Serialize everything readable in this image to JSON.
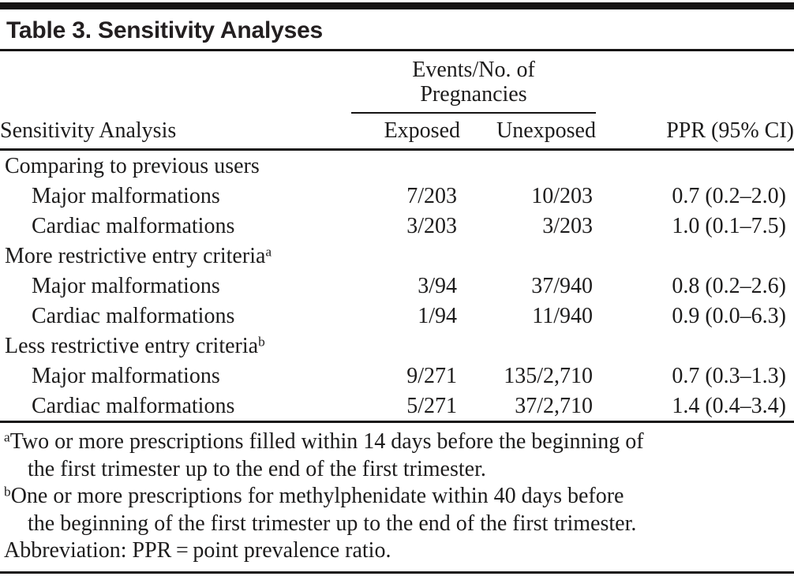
{
  "table": {
    "title": "Table 3. Sensitivity Analyses",
    "spanner_line1": "Events/No. of",
    "spanner_line2": "Pregnancies",
    "columns": {
      "stub": "Sensitivity Analysis",
      "exposed": "Exposed",
      "unexposed": "Unexposed",
      "ppr": "PPR (95% CI)"
    },
    "groups": [
      {
        "label": "Comparing to previous users",
        "superscript": "",
        "rows": [
          {
            "label": "Major malformations",
            "exposed": "7/203",
            "unexposed": "10/203",
            "ppr": "0.7 (0.2–2.0)"
          },
          {
            "label": "Cardiac malformations",
            "exposed": "3/203",
            "unexposed": "3/203",
            "ppr": "1.0 (0.1–7.5)"
          }
        ]
      },
      {
        "label": "More restrictive entry criteria",
        "superscript": "a",
        "rows": [
          {
            "label": "Major malformations",
            "exposed": "3/94",
            "unexposed": "37/940",
            "ppr": "0.8 (0.2–2.6)"
          },
          {
            "label": "Cardiac malformations",
            "exposed": "1/94",
            "unexposed": "11/940",
            "ppr": "0.9 (0.0–6.3)"
          }
        ]
      },
      {
        "label": "Less restrictive entry criteria",
        "superscript": "b",
        "rows": [
          {
            "label": "Major malformations",
            "exposed": "9/271",
            "unexposed": "135/2,710",
            "ppr": "0.7 (0.3–1.3)"
          },
          {
            "label": "Cardiac malformations",
            "exposed": "5/271",
            "unexposed": "37/2,710",
            "ppr": "1.4 (0.4–3.4)"
          }
        ]
      }
    ],
    "footnotes": [
      {
        "marker": "a",
        "line1": "Two or more prescriptions filled within 14 days before the beginning of",
        "line2": "the first trimester up to the end of the first trimester."
      },
      {
        "marker": "b",
        "line1": "One or more prescriptions for methylphenidate within 40 days before",
        "line2": "the beginning of the first trimester up to the end of the first trimester."
      }
    ],
    "abbreviation": "Abbreviation: PPR = point prevalence ratio."
  }
}
